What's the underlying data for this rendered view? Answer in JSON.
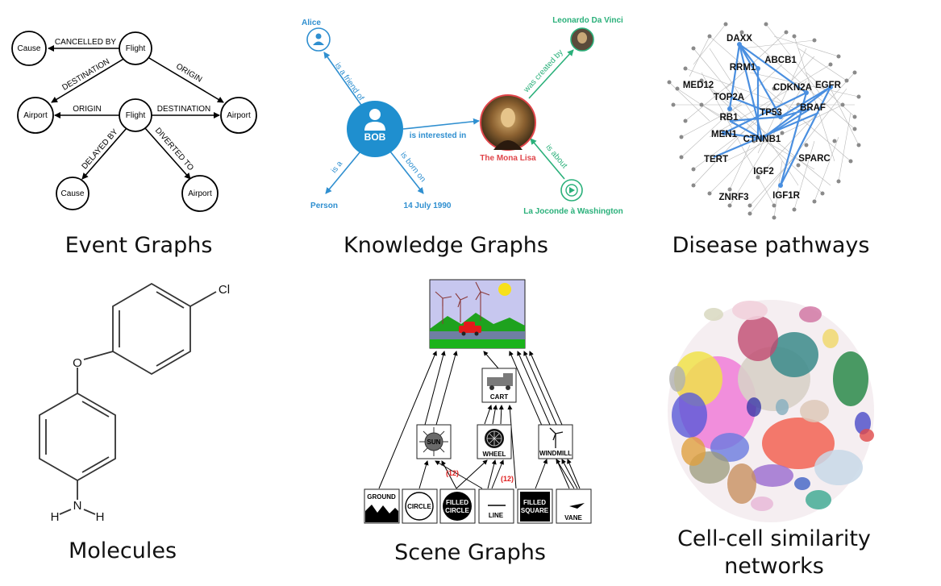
{
  "captions": {
    "event": "Event Graphs",
    "knowledge": "Knowledge Graphs",
    "disease": "Disease pathways",
    "molecules": "Molecules",
    "scene": "Scene Graphs",
    "cell_line1": "Cell-cell similarity",
    "cell_line2": "networks"
  },
  "event_graph": {
    "nodes": {
      "cause1": "Cause",
      "flight1": "Flight",
      "airport1": "Airport",
      "flight2": "Flight",
      "airport2": "Airport",
      "cause2": "Cause",
      "airport3": "Airport"
    },
    "edges": {
      "cancelled_by": "CANCELLED BY",
      "destination1": "DESTINATION",
      "origin1": "ORIGIN",
      "origin2": "ORIGIN",
      "destination2": "DESTINATION",
      "delayed_by": "DELAYED BY",
      "diverted_to": "DIVERTED TO"
    }
  },
  "knowledge_graph": {
    "nodes": {
      "alice": "Alice",
      "bob": "BOB",
      "person": "Person",
      "date": "14 July 1990",
      "mona_lisa": "The Mona Lisa",
      "leonardo": "Leonardo Da Vinci",
      "joconde": "La Joconde à Washington"
    },
    "edges": {
      "friend": "is a friend of",
      "interested": "is interested in",
      "is_a": "is a",
      "born_on": "is born on",
      "created_by": "was created by",
      "about": "is about"
    },
    "colors": {
      "blue": "#2f8fd0",
      "red": "#e0454a",
      "green": "#2ab07a"
    }
  },
  "disease_pathways": {
    "genes": {
      "daxx": "DAXX",
      "abcb1": "ABCB1",
      "rrm1": "RRM1",
      "med12": "MED12",
      "cdkn2a": "CDKN2A",
      "egfr": "EGFR",
      "top2a": "TOP2A",
      "tp53": "TP53",
      "braf": "BRAF",
      "rb1": "RB1",
      "men1": "MEN1",
      "ctnnb1": "CTNNB1",
      "sparc": "SPARC",
      "tert": "TERT",
      "igf2": "IGF2",
      "znrf3": "ZNRF3",
      "igf1r": "IGF1R"
    },
    "highlight_color": "#4a8fe0"
  },
  "molecule": {
    "atoms": {
      "cl": "Cl",
      "o": "O",
      "h1": "H",
      "n": "N",
      "h2": "H"
    }
  },
  "scene_graph": {
    "nodes": {
      "cart": "CART",
      "sun": "SUN",
      "wheel": "WHEEL",
      "windmill": "WINDMILL",
      "ground": "GROUND",
      "circle": "CIRCLE",
      "filled_circle_1": "FILLED",
      "filled_circle_2": "CIRCLE",
      "line": "LINE",
      "filled_square_1": "FILLED",
      "filled_square_2": "SQUARE",
      "vane": "VANE"
    },
    "multiplicity_1": "(12)",
    "multiplicity_2": "(12)"
  }
}
